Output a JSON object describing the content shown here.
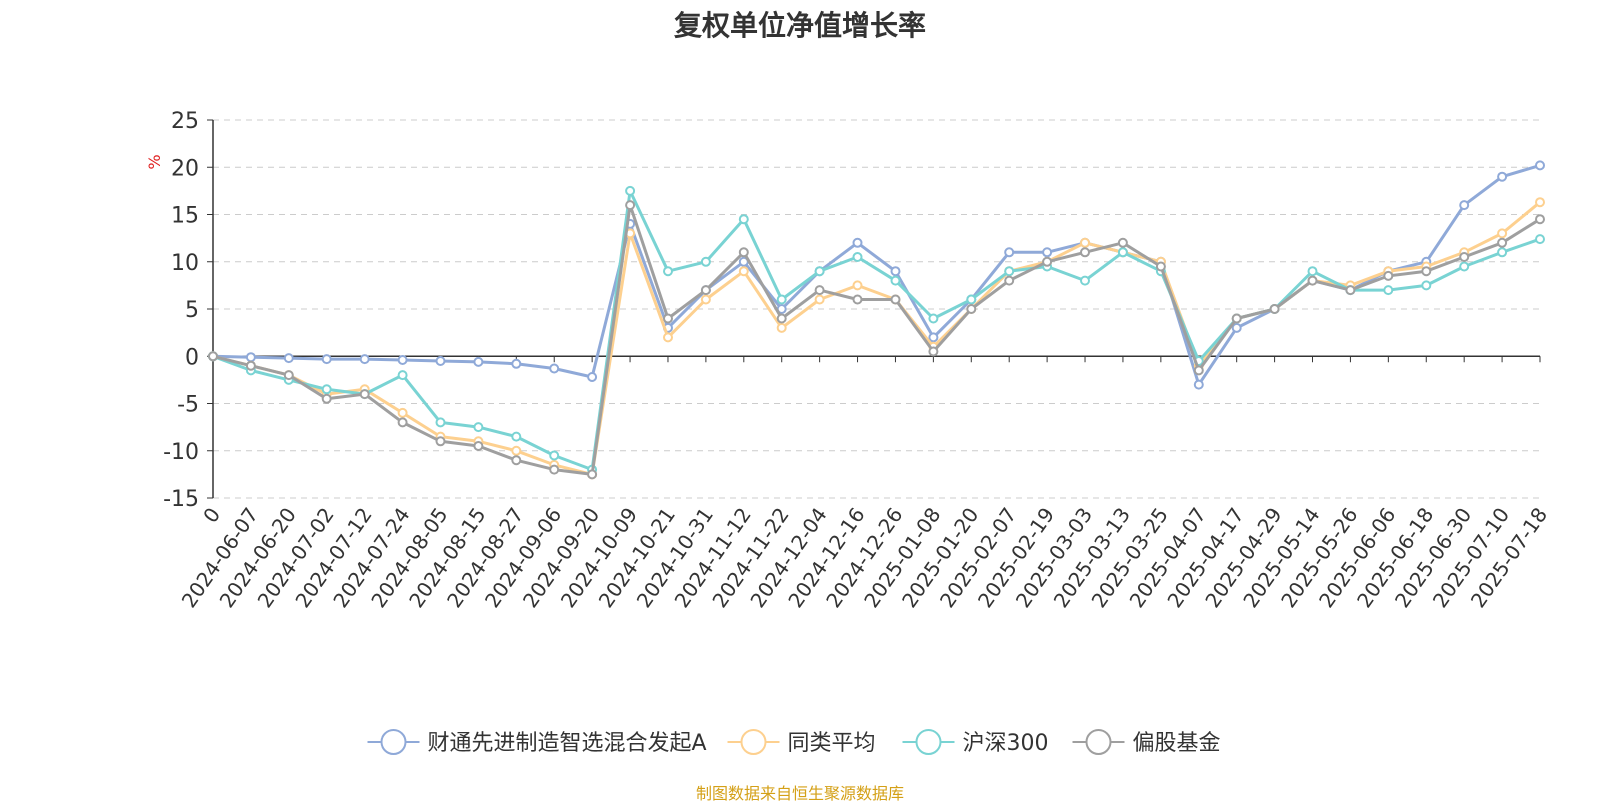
{
  "chart_data": {
    "type": "line",
    "title": "复权单位净值增长率",
    "ylabel": "%",
    "ylim": [
      -15,
      25
    ],
    "yticks": [
      25,
      20,
      15,
      10,
      5,
      0,
      -5,
      -10,
      -15
    ],
    "grid": true,
    "legend_position": "bottom",
    "source": "制图数据来自恒生聚源数据库",
    "x": [
      "0",
      "2024-06-07",
      "2024-06-20",
      "2024-07-02",
      "2024-07-12",
      "2024-07-24",
      "2024-08-05",
      "2024-08-15",
      "2024-08-27",
      "2024-09-06",
      "2024-09-20",
      "2024-10-09",
      "2024-10-21",
      "2024-10-31",
      "2024-11-12",
      "2024-11-22",
      "2024-12-04",
      "2024-12-16",
      "2024-12-26",
      "2025-01-08",
      "2025-01-20",
      "2025-02-07",
      "2025-02-19",
      "2025-03-03",
      "2025-03-13",
      "2025-03-25",
      "2025-04-07",
      "2025-04-17",
      "2025-04-29",
      "2025-05-14",
      "2025-05-26",
      "2025-06-06",
      "2025-06-18",
      "2025-06-30",
      "2025-07-10",
      "2025-07-18"
    ],
    "series": [
      {
        "name": "财通先进制造智选混合发起A",
        "color": "#8fa9d8",
        "values": [
          0,
          -0.1,
          -0.2,
          -0.3,
          -0.3,
          -0.4,
          -0.5,
          -0.6,
          -0.8,
          -1.3,
          -2.2,
          14,
          3,
          7,
          10,
          5,
          9,
          12,
          9,
          2,
          6,
          11,
          11,
          12,
          11,
          10,
          -3,
          3,
          5,
          8,
          7,
          9,
          10,
          16,
          19,
          20.2
        ]
      },
      {
        "name": "同类平均",
        "color": "#fdd08f",
        "values": [
          0,
          -1,
          -2,
          -4,
          -3.5,
          -6,
          -8.5,
          -9,
          -10,
          -11.5,
          -12.5,
          13,
          2,
          6,
          9,
          3,
          6,
          7.5,
          6,
          1,
          5,
          9,
          10,
          12,
          11,
          10,
          -1,
          4,
          5,
          8,
          7.5,
          9,
          9.5,
          11,
          13,
          16.3
        ]
      },
      {
        "name": "沪深300",
        "color": "#79d3d3",
        "values": [
          0,
          -1.5,
          -2.5,
          -3.5,
          -4,
          -2,
          -7,
          -7.5,
          -8.5,
          -10.5,
          -12,
          17.5,
          9,
          10,
          14.5,
          6,
          9,
          10.5,
          8,
          4,
          6,
          9,
          9.5,
          8,
          11,
          9,
          -0.5,
          4,
          5,
          9,
          7,
          7,
          7.5,
          9.5,
          11,
          12.4
        ]
      },
      {
        "name": "偏股基金",
        "color": "#9f9f9f",
        "values": [
          0,
          -1,
          -2,
          -4.5,
          -4,
          -7,
          -9,
          -9.5,
          -11,
          -12,
          -12.5,
          16,
          4,
          7,
          11,
          4,
          7,
          6,
          6,
          0.5,
          5,
          8,
          10,
          11,
          12,
          9.5,
          -1.5,
          4,
          5,
          8,
          7,
          8.5,
          9,
          10.5,
          12,
          14.5
        ]
      }
    ]
  }
}
